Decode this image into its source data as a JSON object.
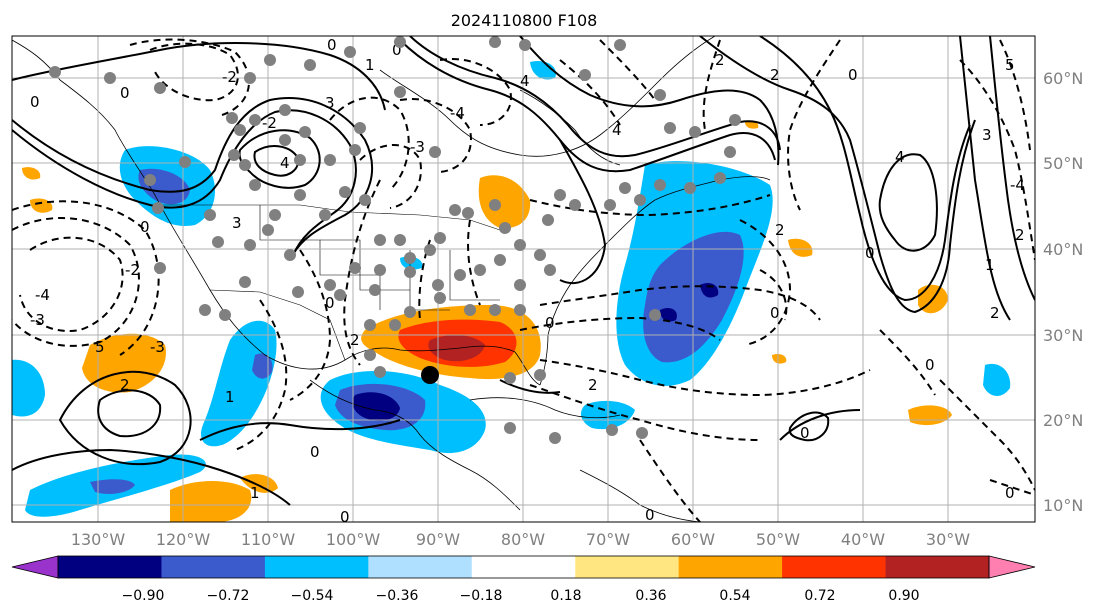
{
  "title": "2024110800 F108",
  "map": {
    "lon_labels": [
      "130°W",
      "120°W",
      "110°W",
      "100°W",
      "90°W",
      "80°W",
      "70°W",
      "60°W",
      "50°W",
      "40°W",
      "30°W"
    ],
    "lat_labels": [
      "60°N",
      "50°N",
      "40°N",
      "30°N",
      "20°N",
      "10°N"
    ]
  },
  "contour_labels": [
    "-2",
    "-3",
    "-4",
    "0",
    "2",
    "3",
    "4",
    "5",
    "-1",
    "1"
  ],
  "colorbar": {
    "ticks": [
      "−0.90",
      "−0.72",
      "−0.54",
      "−0.36",
      "−0.18",
      "0.18",
      "0.36",
      "0.54",
      "0.72",
      "0.90"
    ],
    "colors": [
      "#9933cc",
      "#000080",
      "#3b5bcc",
      "#00bfff",
      "#b0e0ff",
      "#ffffff",
      "#ffe680",
      "#ffa500",
      "#ff3300",
      "#b22222",
      "#ff80b0"
    ]
  },
  "colors": {
    "grid": "#b0b0b0",
    "marker": "#808080",
    "center_marker": "#000000"
  }
}
